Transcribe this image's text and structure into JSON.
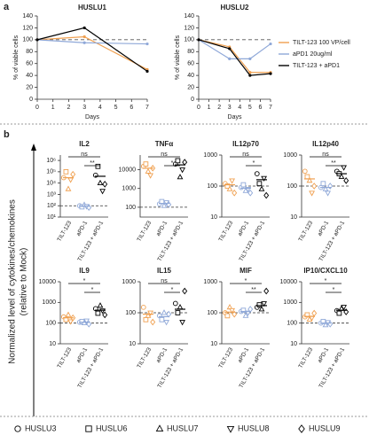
{
  "panel_a": {
    "label": "a"
  },
  "panel_b": {
    "label": "b",
    "ylabel": [
      "Normalized level of cytokines/chemokines",
      "(relative to Mock)"
    ]
  },
  "legend": {
    "labels": [
      "HUSLU3",
      "HUSLU6",
      "HUSLU7",
      "HUSLU8",
      "HUSLU9"
    ],
    "markers": [
      "circle",
      "square",
      "triangle",
      "triangle-down",
      "diamond"
    ]
  },
  "chart_data": [
    {
      "type": "line",
      "title": "HUSLU1",
      "xlabel": "Days",
      "ylabel": "% of viable cells",
      "x": [
        0,
        3,
        7
      ],
      "series": [
        {
          "name": "TILT-123 100 VP/cell",
          "color": "#f0a050",
          "values": [
            100,
            105,
            50
          ]
        },
        {
          "name": "aPD1 20ug/ml",
          "color": "#8fa8d8",
          "values": [
            100,
            95,
            93
          ]
        },
        {
          "name": "TILT-123 + aPD1",
          "color": "#000000",
          "values": [
            100,
            120,
            47
          ]
        }
      ],
      "reference": 100,
      "xlim": [
        0,
        7
      ],
      "xticks": [
        0,
        1,
        2,
        3,
        4,
        5,
        6,
        7
      ],
      "ylim": [
        0,
        140
      ],
      "yticks": [
        0,
        20,
        40,
        60,
        80,
        100,
        120,
        140
      ],
      "legend": "right"
    },
    {
      "type": "line",
      "title": "HUSLU2",
      "xlabel": "Days",
      "ylabel": "% of viable cells",
      "x": [
        0,
        3,
        5,
        7
      ],
      "series": [
        {
          "name": "TILT-123 100 VP/cell",
          "color": "#f0a050",
          "values": [
            100,
            88,
            45,
            45
          ]
        },
        {
          "name": "aPD1 20ug/ml",
          "color": "#8fa8d8",
          "values": [
            100,
            68,
            68,
            93
          ]
        },
        {
          "name": "TILT-123 + aPD1",
          "color": "#000000",
          "values": [
            100,
            85,
            40,
            43
          ]
        }
      ],
      "reference": 100,
      "xlim": [
        0,
        7
      ],
      "xticks": [
        0,
        1,
        2,
        3,
        4,
        5,
        6,
        7
      ],
      "ylim": [
        0,
        140
      ],
      "yticks": [
        0,
        20,
        40,
        60,
        80,
        100,
        120,
        140
      ]
    },
    {
      "type": "dot",
      "title": "IL2",
      "log_scale": true,
      "categories": [
        "TILT-123",
        "aPD-1",
        "TILT-123 + aPD-1"
      ],
      "colors": [
        "#f0a050",
        "#8fa8d8",
        "#000000"
      ],
      "values": [
        [
          30000,
          100000,
          3000,
          20000,
          60000
        ],
        [
          100,
          80,
          120,
          90,
          70
        ],
        [
          50000,
          300000,
          10000,
          2000,
          8000
        ]
      ],
      "means": [
        30000,
        90,
        40000
      ],
      "reference": 100,
      "ylim": [
        10,
        3000000
      ],
      "yticks": [
        {
          "value": 10,
          "label": "10¹"
        },
        {
          "value": 100,
          "label": "10²"
        },
        {
          "value": 1000,
          "label": "10³"
        },
        {
          "value": 10000,
          "label": "10⁴"
        },
        {
          "value": 100000,
          "label": "10⁵"
        },
        {
          "value": 1000000,
          "label": "10⁶"
        }
      ],
      "annotations": [
        {
          "label": "ns",
          "from": 0,
          "to": 2
        },
        {
          "label": "**",
          "from": 1,
          "to": 2
        }
      ]
    },
    {
      "type": "dot",
      "title": "TNFα",
      "log_scale": true,
      "categories": [
        "TILT-123",
        "aPD-1",
        "TILT-123 + aPD-1"
      ],
      "colors": [
        "#f0a050",
        "#8fa8d8",
        "#000000"
      ],
      "values": [
        [
          15000,
          20000,
          8000,
          5000,
          12000
        ],
        [
          150,
          200,
          120,
          180,
          140
        ],
        [
          20000,
          30000,
          4000,
          10000,
          25000
        ]
      ],
      "means": [
        12000,
        160,
        18000
      ],
      "reference": 100,
      "ylim": [
        30,
        60000
      ],
      "yticks": [
        100,
        1000,
        10000
      ],
      "annotations": [
        {
          "label": "ns",
          "from": 0,
          "to": 2
        },
        {
          "label": "*",
          "from": 1,
          "to": 2
        }
      ]
    },
    {
      "type": "dot",
      "title": "IL12p70",
      "log_scale": true,
      "categories": [
        "TILT-123",
        "aPD-1",
        "TILT-123 + aPD-1"
      ],
      "colors": [
        "#f0a050",
        "#8fa8d8",
        "#000000"
      ],
      "values": [
        [
          120,
          100,
          80,
          150,
          60
        ],
        [
          90,
          110,
          70,
          80,
          60
        ],
        [
          250,
          120,
          80,
          180,
          50
        ]
      ],
      "means": [
        110,
        85,
        160
      ],
      "reference": 100,
      "ylim": [
        10,
        1000
      ],
      "yticks": [
        10,
        100,
        1000
      ],
      "annotations": [
        {
          "label": "ns",
          "from": 0,
          "to": 2
        },
        {
          "label": "*",
          "from": 1,
          "to": 2
        }
      ]
    },
    {
      "type": "dot",
      "title": "IL12p40",
      "log_scale": true,
      "categories": [
        "TILT-123",
        "aPD-1",
        "TILT-123 + aPD-1"
      ],
      "colors": [
        "#f0a050",
        "#8fa8d8",
        "#000000"
      ],
      "values": [
        [
          300,
          200,
          150,
          60,
          100
        ],
        [
          90,
          120,
          80,
          60,
          100
        ],
        [
          300,
          250,
          200,
          400,
          150
        ]
      ],
      "means": [
        170,
        90,
        250
      ],
      "reference": 100,
      "ylim": [
        10,
        1000
      ],
      "yticks": [
        10,
        100,
        1000
      ],
      "annotations": [
        {
          "label": "ns",
          "from": 0,
          "to": 2
        },
        {
          "label": "**",
          "from": 1,
          "to": 2
        }
      ]
    },
    {
      "type": "dot",
      "title": "IL9",
      "log_scale": true,
      "categories": [
        "TILT-123",
        "aPD-1",
        "TILT-123 + aPD-1"
      ],
      "colors": [
        "#f0a050",
        "#8fa8d8",
        "#000000"
      ],
      "values": [
        [
          200,
          150,
          250,
          120,
          180
        ],
        [
          110,
          120,
          100,
          130,
          90
        ],
        [
          500,
          300,
          700,
          400,
          250
        ]
      ],
      "means": [
        180,
        110,
        420
      ],
      "reference": 100,
      "ylim": [
        10,
        10000
      ],
      "yticks": [
        10,
        100,
        1000,
        10000
      ],
      "annotations": [
        {
          "label": "*",
          "from": 0,
          "to": 2
        },
        {
          "label": "*",
          "from": 1,
          "to": 2
        }
      ]
    },
    {
      "type": "dot",
      "title": "IL15",
      "log_scale": true,
      "categories": [
        "TILT-123",
        "aPD-1",
        "TILT-123 + aPD-1"
      ],
      "colors": [
        "#f0a050",
        "#8fa8d8",
        "#000000"
      ],
      "values": [
        [
          150,
          60,
          80,
          100,
          50
        ],
        [
          80,
          60,
          100,
          50,
          90
        ],
        [
          200,
          100,
          150,
          50,
          500
        ]
      ],
      "means": [
        90,
        75,
        130
      ],
      "reference": 100,
      "ylim": [
        10,
        1000
      ],
      "yticks": [
        10,
        100,
        1000
      ],
      "annotations": [
        {
          "label": "ns",
          "from": 0,
          "to": 2
        },
        {
          "label": "*",
          "from": 1,
          "to": 2
        }
      ]
    },
    {
      "type": "dot",
      "title": "MIF",
      "log_scale": true,
      "categories": [
        "TILT-123",
        "aPD-1",
        "TILT-123 + aPD-1"
      ],
      "colors": [
        "#f0a050",
        "#8fa8d8",
        "#000000"
      ],
      "values": [
        [
          100,
          80,
          150,
          120,
          90
        ],
        [
          110,
          120,
          80,
          100,
          130
        ],
        [
          150,
          180,
          130,
          200,
          500
        ]
      ],
      "means": [
        105,
        110,
        170
      ],
      "reference": 100,
      "ylim": [
        10,
        1000
      ],
      "yticks": [
        10,
        100,
        1000
      ],
      "annotations": [
        {
          "label": "*",
          "from": 0,
          "to": 2
        },
        {
          "label": "**",
          "from": 1,
          "to": 2
        }
      ]
    },
    {
      "type": "dot",
      "title": "IP10/CXCL10",
      "log_scale": true,
      "categories": [
        "TILT-123",
        "aPD-1",
        "TILT-123 + aPD-1"
      ],
      "colors": [
        "#f0a050",
        "#8fa8d8",
        "#000000"
      ],
      "values": [
        [
          200,
          250,
          150,
          180,
          300
        ],
        [
          100,
          120,
          80,
          110,
          90
        ],
        [
          400,
          300,
          500,
          600,
          350
        ]
      ],
      "means": [
        210,
        100,
        420
      ],
      "reference": 100,
      "ylim": [
        10,
        10000
      ],
      "yticks": [
        10,
        100,
        1000,
        10000
      ],
      "annotations": [
        {
          "label": "*",
          "from": 0,
          "to": 2
        },
        {
          "label": "*",
          "from": 1,
          "to": 2
        }
      ]
    }
  ]
}
